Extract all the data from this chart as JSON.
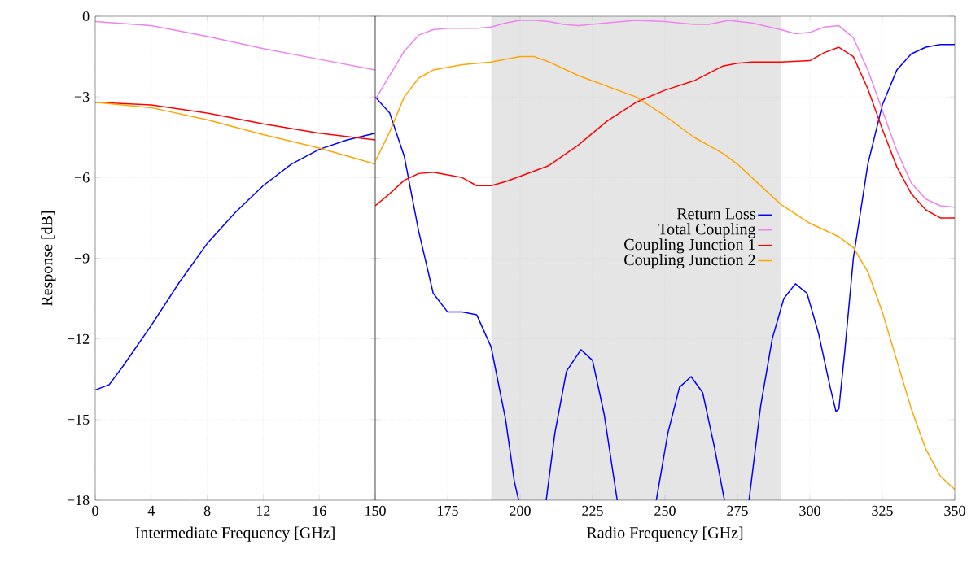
{
  "chart_data": [
    {
      "type": "line",
      "xlabel": "Intermediate Frequency [GHz]",
      "ylabel": "Response [dB]",
      "xlim": [
        0,
        20
      ],
      "ylim": [
        -18,
        0
      ],
      "xticks": [
        0,
        4,
        8,
        12,
        16
      ],
      "yticks": [
        {
          "value": -18,
          "label": "−18"
        },
        {
          "value": -15,
          "label": "−15"
        },
        {
          "value": -12,
          "label": "−12"
        },
        {
          "value": -9,
          "label": "−9"
        },
        {
          "value": -6,
          "label": "−6"
        },
        {
          "value": -3,
          "label": "−3"
        },
        0
      ],
      "grid": true,
      "series": [
        {
          "color": "#0000ff",
          "x": [
            0,
            1,
            2,
            4,
            6,
            8,
            10,
            12,
            14,
            16,
            18,
            20
          ],
          "values": [
            -13.9,
            -13.7,
            -13.0,
            -11.5,
            -9.9,
            -8.45,
            -7.3,
            -6.3,
            -5.5,
            -4.95,
            -4.6,
            -4.35
          ]
        },
        {
          "color": "#ee82ee",
          "x": [
            0,
            4,
            8,
            12,
            16,
            20
          ],
          "values": [
            -0.2,
            -0.35,
            -0.75,
            -1.2,
            -1.6,
            -2.0
          ]
        },
        {
          "color": "#ff0000",
          "x": [
            0,
            4,
            8,
            12,
            16,
            20
          ],
          "values": [
            -3.2,
            -3.3,
            -3.6,
            -4.0,
            -4.35,
            -4.6
          ]
        },
        {
          "color": "#ffa500",
          "x": [
            0,
            4,
            8,
            12,
            16,
            20
          ],
          "values": [
            -3.2,
            -3.4,
            -3.85,
            -4.4,
            -4.9,
            -5.5
          ]
        }
      ]
    },
    {
      "type": "line",
      "xlabel": "Radio Frequency [GHz]",
      "xlim": [
        150,
        350
      ],
      "ylim": [
        -18,
        0
      ],
      "xticks": [
        150,
        175,
        200,
        225,
        250,
        275,
        300,
        325,
        350
      ],
      "yticks": [
        -18,
        -15,
        -12,
        -9,
        -6,
        -3,
        0
      ],
      "tick_labels": "x",
      "grid": true,
      "legend": "right",
      "bands": [
        {
          "axis": "x",
          "from": 190,
          "to": 290,
          "color": "#e5e5e5"
        }
      ],
      "series": [
        {
          "name": "Return Loss",
          "color": "#0000ff",
          "x": [
            150,
            155,
            160,
            165,
            170,
            175,
            180,
            185,
            190,
            195,
            198,
            199.5,
            204,
            209,
            212,
            216,
            221,
            225,
            229,
            233.5,
            240,
            247,
            251,
            255,
            259,
            263,
            267,
            270.5,
            275,
            279,
            283,
            287,
            291,
            295,
            299,
            303,
            307,
            309,
            310,
            312,
            315,
            320,
            325,
            330,
            335,
            340,
            345,
            350
          ],
          "values": [
            -3.0,
            -3.6,
            -5.2,
            -8.0,
            -10.3,
            -11.0,
            -11.0,
            -11.1,
            -12.3,
            -15.0,
            -17.3,
            -18,
            null,
            -18,
            -15.5,
            -13.2,
            -12.4,
            -12.8,
            -14.8,
            -18,
            null,
            -18,
            -15.5,
            -13.8,
            -13.4,
            -14.0,
            -16.0,
            -18,
            null,
            -18,
            -14.5,
            -12.0,
            -10.5,
            -9.95,
            -10.3,
            -11.8,
            -13.8,
            -14.7,
            -14.6,
            -12.5,
            -9.0,
            -5.5,
            -3.3,
            -2.0,
            -1.4,
            -1.15,
            -1.05,
            -1.05
          ]
        },
        {
          "name": "Total Coupling",
          "color": "#ee82ee",
          "x": [
            150,
            155,
            160,
            165,
            170,
            175,
            185,
            190,
            195,
            200,
            205,
            210,
            215,
            220,
            230,
            240,
            250,
            260,
            265,
            272,
            280,
            290,
            295,
            300,
            305,
            310,
            315,
            320,
            325,
            330,
            335,
            340,
            345,
            350
          ],
          "values": [
            -3.1,
            -2.2,
            -1.3,
            -0.7,
            -0.5,
            -0.45,
            -0.45,
            -0.4,
            -0.25,
            -0.15,
            -0.15,
            -0.2,
            -0.3,
            -0.35,
            -0.25,
            -0.15,
            -0.2,
            -0.3,
            -0.3,
            -0.15,
            -0.25,
            -0.5,
            -0.65,
            -0.6,
            -0.4,
            -0.35,
            -0.8,
            -2.0,
            -3.5,
            -5.0,
            -6.2,
            -6.8,
            -7.05,
            -7.1
          ]
        },
        {
          "name": "Coupling Junction 1",
          "color": "#ff0000",
          "x": [
            150,
            155,
            160,
            165,
            170,
            175,
            180,
            185,
            190,
            195,
            200,
            210,
            220,
            230,
            240,
            250,
            260,
            270,
            275,
            280,
            290,
            300,
            305,
            310,
            315,
            320,
            325,
            330,
            335,
            340,
            345,
            350
          ],
          "values": [
            -7.05,
            -6.6,
            -6.1,
            -5.85,
            -5.8,
            -5.9,
            -6.0,
            -6.3,
            -6.3,
            -6.15,
            -5.95,
            -5.55,
            -4.8,
            -3.9,
            -3.2,
            -2.75,
            -2.4,
            -1.85,
            -1.75,
            -1.7,
            -1.7,
            -1.65,
            -1.35,
            -1.15,
            -1.5,
            -2.7,
            -4.2,
            -5.6,
            -6.6,
            -7.2,
            -7.5,
            -7.5
          ]
        },
        {
          "name": "Coupling Junction 2",
          "color": "#ffa500",
          "x": [
            150,
            155,
            160,
            165,
            170,
            180,
            190,
            200,
            205,
            210,
            220,
            230,
            240,
            250,
            260,
            270,
            275,
            280,
            290,
            300,
            310,
            315,
            320,
            325,
            330,
            335,
            340,
            345,
            350
          ],
          "values": [
            -5.4,
            -4.3,
            -3.0,
            -2.3,
            -2.0,
            -1.8,
            -1.7,
            -1.5,
            -1.5,
            -1.7,
            -2.2,
            -2.6,
            -3.0,
            -3.7,
            -4.5,
            -5.1,
            -5.5,
            -6.0,
            -7.0,
            -7.7,
            -8.2,
            -8.6,
            -9.5,
            -11.0,
            -12.8,
            -14.6,
            -16.1,
            -17.1,
            -17.6
          ]
        }
      ]
    }
  ]
}
